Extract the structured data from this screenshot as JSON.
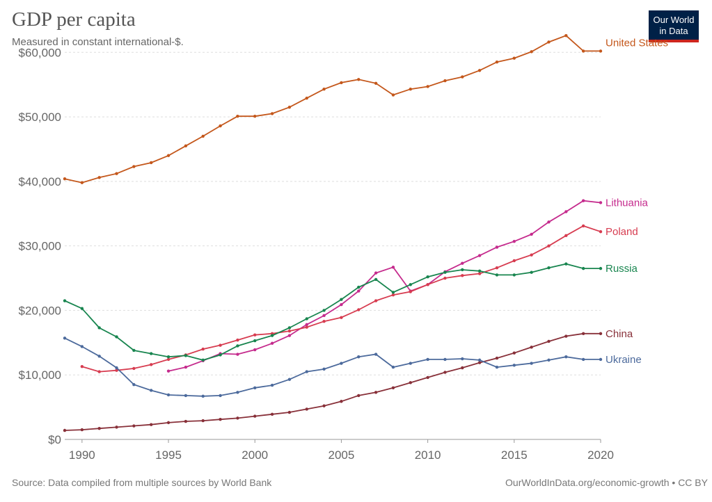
{
  "header": {
    "title": "GDP per capita",
    "subtitle": "Measured in constant international-$."
  },
  "logo": {
    "line1": "Our World",
    "line2": "in Data",
    "bg_color": "#002147",
    "accent_color": "#ce261e"
  },
  "footer": {
    "source": "Source: Data compiled from multiple sources by World Bank",
    "credit": "OurWorldInData.org/economic-growth • CC BY"
  },
  "chart_data": {
    "type": "line",
    "title": "GDP per capita",
    "subtitle": "Measured in constant international-$.",
    "xlabel": "",
    "ylabel": "",
    "xlim": [
      1989,
      2020
    ],
    "ylim": [
      0,
      60000
    ],
    "x_ticks": [
      1990,
      1995,
      2000,
      2005,
      2010,
      2015,
      2020
    ],
    "y_ticks": [
      {
        "value": 0,
        "label": "$0"
      },
      {
        "value": 10000,
        "label": "$10,000"
      },
      {
        "value": 20000,
        "label": "$20,000"
      },
      {
        "value": 30000,
        "label": "$30,000"
      },
      {
        "value": 40000,
        "label": "$40,000"
      },
      {
        "value": 50000,
        "label": "$50,000"
      },
      {
        "value": 60000,
        "label": "$60,000"
      }
    ],
    "grid": "horizontal dashed",
    "legend": "inline labels at right end of lines",
    "series": [
      {
        "name": "United States",
        "color": "#c4571b",
        "label_y": 61500,
        "x": [
          1989,
          1990,
          1991,
          1992,
          1993,
          1994,
          1995,
          1996,
          1997,
          1998,
          1999,
          2000,
          2001,
          2002,
          2003,
          2004,
          2005,
          2006,
          2007,
          2008,
          2009,
          2010,
          2011,
          2012,
          2013,
          2014,
          2015,
          2016,
          2017,
          2018,
          2019,
          2020
        ],
        "y": [
          40400,
          39800,
          40600,
          41200,
          42300,
          42900,
          44000,
          45500,
          47000,
          48600,
          50100,
          50100,
          50500,
          51500,
          52900,
          54300,
          55300,
          55800,
          55200,
          53400,
          54300,
          54700,
          55600,
          56200,
          57200,
          58500,
          59100,
          60100,
          61600,
          62600,
          60200,
          60200
        ]
      },
      {
        "name": "Lithuania",
        "color": "#c52b8d",
        "label_y": 36700,
        "x": [
          1995,
          1996,
          1997,
          1998,
          1999,
          2000,
          2001,
          2002,
          2003,
          2004,
          2005,
          2006,
          2007,
          2008,
          2009,
          2010,
          2011,
          2012,
          2013,
          2014,
          2015,
          2016,
          2017,
          2018,
          2019,
          2020
        ],
        "y": [
          10600,
          11200,
          12200,
          13300,
          13200,
          13900,
          14900,
          16100,
          17800,
          19200,
          20900,
          23000,
          25800,
          26700,
          23000,
          24000,
          26000,
          27300,
          28500,
          29800,
          30700,
          31800,
          33700,
          35300,
          37000,
          36700
        ]
      },
      {
        "name": "Poland",
        "color": "#d73c50",
        "label_y": 32200,
        "x": [
          1990,
          1991,
          1992,
          1993,
          1994,
          1995,
          1996,
          1997,
          1998,
          1999,
          2000,
          2001,
          2002,
          2003,
          2004,
          2005,
          2006,
          2007,
          2008,
          2009,
          2010,
          2011,
          2012,
          2013,
          2014,
          2015,
          2016,
          2017,
          2018,
          2019,
          2020
        ],
        "y": [
          11300,
          10500,
          10700,
          11000,
          11600,
          12400,
          13100,
          14000,
          14600,
          15400,
          16200,
          16400,
          16800,
          17400,
          18300,
          18900,
          20100,
          21500,
          22400,
          22900,
          24000,
          25000,
          25400,
          25700,
          26600,
          27700,
          28600,
          30000,
          31600,
          33100,
          32200
        ]
      },
      {
        "name": "Russia",
        "color": "#18854f",
        "label_y": 26500,
        "x": [
          1989,
          1990,
          1991,
          1992,
          1993,
          1994,
          1995,
          1996,
          1997,
          1998,
          1999,
          2000,
          2001,
          2002,
          2003,
          2004,
          2005,
          2006,
          2007,
          2008,
          2009,
          2010,
          2011,
          2012,
          2013,
          2014,
          2015,
          2016,
          2017,
          2018,
          2019,
          2020
        ],
        "y": [
          21500,
          20300,
          17300,
          15900,
          13800,
          13300,
          12800,
          13000,
          12300,
          13100,
          14500,
          15300,
          16100,
          17300,
          18700,
          20000,
          21700,
          23600,
          24800,
          22800,
          24000,
          25200,
          25900,
          26300,
          26100,
          25500,
          25500,
          25900,
          26600,
          27200,
          26500,
          26500
        ]
      },
      {
        "name": "China",
        "color": "#883039",
        "label_y": 16400,
        "x": [
          1989,
          1990,
          1991,
          1992,
          1993,
          1994,
          1995,
          1996,
          1997,
          1998,
          1999,
          2000,
          2001,
          2002,
          2003,
          2004,
          2005,
          2006,
          2007,
          2008,
          2009,
          2010,
          2011,
          2012,
          2013,
          2014,
          2015,
          2016,
          2017,
          2018,
          2019,
          2020
        ],
        "y": [
          1400,
          1500,
          1700,
          1900,
          2100,
          2300,
          2600,
          2800,
          2900,
          3100,
          3300,
          3600,
          3900,
          4200,
          4700,
          5200,
          5900,
          6800,
          7300,
          8000,
          8800,
          9600,
          10400,
          11100,
          11900,
          12600,
          13400,
          14300,
          15200,
          16000,
          16400,
          16400
        ]
      },
      {
        "name": "Ukraine",
        "color": "#4c6a9c",
        "label_y": 12400,
        "x": [
          1989,
          1990,
          1991,
          1992,
          1993,
          1994,
          1995,
          1996,
          1997,
          1998,
          1999,
          2000,
          2001,
          2002,
          2003,
          2004,
          2005,
          2006,
          2007,
          2008,
          2009,
          2010,
          2011,
          2012,
          2013,
          2014,
          2015,
          2016,
          2017,
          2018,
          2019,
          2020
        ],
        "y": [
          15700,
          14400,
          12900,
          11100,
          8500,
          7600,
          6900,
          6800,
          6700,
          6800,
          7300,
          8000,
          8400,
          9300,
          10500,
          10900,
          11800,
          12800,
          13200,
          11200,
          11800,
          12400,
          12400,
          12500,
          12300,
          11200,
          11500,
          11800,
          12300,
          12800,
          12400,
          12400
        ]
      }
    ]
  }
}
